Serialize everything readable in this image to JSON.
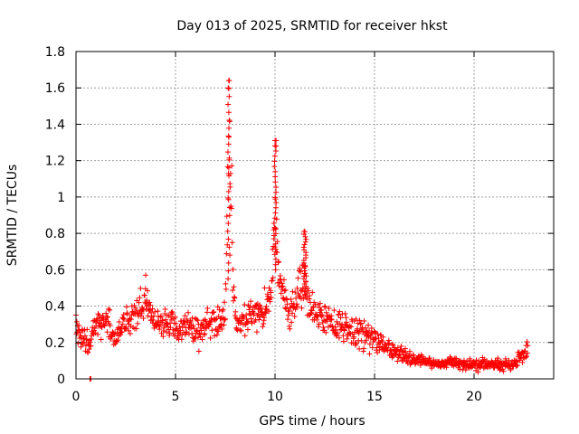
{
  "chart_data": {
    "type": "scatter",
    "title": "Day 013 of 2025, SRMTID for receiver hkst",
    "xlabel": "GPS time / hours",
    "ylabel": "SRMTID / TECUs",
    "xlim": [
      0,
      24
    ],
    "ylim": [
      0,
      1.8
    ],
    "xticks": [
      0,
      5,
      10,
      15,
      20
    ],
    "yticks": [
      0,
      0.2,
      0.4,
      0.6,
      0.8,
      1,
      1.2,
      1.4,
      1.6,
      1.8
    ],
    "xtick_labels": [
      "0",
      "5",
      "10",
      "15",
      "20"
    ],
    "ytick_labels": [
      "0",
      "0.2",
      "0.4",
      "0.6",
      "0.8",
      "1",
      "1.2",
      "1.4",
      "1.6",
      "1.8"
    ],
    "grid": true,
    "marker": "+",
    "series": [
      {
        "name": "SRMTID",
        "color": "#ff0000",
        "description": "approximate envelope of the dense point cloud (mean level and spread over time)",
        "profile": {
          "x": [
            0.0,
            0.3,
            0.6,
            1.0,
            1.5,
            2.0,
            2.5,
            3.0,
            3.5,
            4.0,
            4.5,
            5.0,
            5.5,
            6.0,
            6.5,
            7.0,
            7.3,
            7.5,
            7.6,
            7.7,
            7.8,
            7.9,
            8.1,
            8.5,
            9.0,
            9.5,
            9.8,
            10.0,
            10.2,
            10.4,
            10.7,
            11.0,
            11.3,
            11.5,
            11.7,
            12.0,
            12.5,
            13.0,
            13.5,
            14.0,
            14.5,
            15.0,
            15.5,
            16.0,
            16.5,
            17.0,
            17.5,
            18.0,
            18.5,
            19.0,
            19.5,
            20.0,
            20.5,
            21.0,
            21.5,
            22.0,
            22.3,
            22.7
          ],
          "mean": [
            0.3,
            0.22,
            0.2,
            0.3,
            0.32,
            0.22,
            0.3,
            0.35,
            0.42,
            0.3,
            0.3,
            0.28,
            0.27,
            0.26,
            0.3,
            0.32,
            0.3,
            0.4,
            0.9,
            1.3,
            1.0,
            0.45,
            0.28,
            0.33,
            0.36,
            0.38,
            0.45,
            0.9,
            0.55,
            0.5,
            0.35,
            0.42,
            0.5,
            0.6,
            0.4,
            0.36,
            0.33,
            0.3,
            0.28,
            0.25,
            0.24,
            0.22,
            0.17,
            0.15,
            0.13,
            0.1,
            0.1,
            0.08,
            0.08,
            0.09,
            0.08,
            0.08,
            0.08,
            0.08,
            0.08,
            0.08,
            0.12,
            0.16
          ],
          "spread": [
            0.1,
            0.08,
            0.08,
            0.1,
            0.1,
            0.08,
            0.1,
            0.1,
            0.12,
            0.1,
            0.1,
            0.1,
            0.1,
            0.1,
            0.1,
            0.1,
            0.1,
            0.15,
            0.35,
            0.35,
            0.35,
            0.15,
            0.1,
            0.1,
            0.1,
            0.12,
            0.12,
            0.4,
            0.1,
            0.1,
            0.1,
            0.12,
            0.15,
            0.2,
            0.12,
            0.1,
            0.1,
            0.1,
            0.1,
            0.1,
            0.1,
            0.1,
            0.08,
            0.07,
            0.06,
            0.04,
            0.04,
            0.03,
            0.03,
            0.04,
            0.04,
            0.04,
            0.04,
            0.04,
            0.04,
            0.04,
            0.05,
            0.06
          ]
        },
        "extremes": [
          {
            "x": 7.7,
            "y": 1.64
          },
          {
            "x": 7.65,
            "y": 1.6
          },
          {
            "x": 10.0,
            "y": 1.31
          },
          {
            "x": 10.05,
            "y": 1.28
          },
          {
            "x": 11.5,
            "y": 0.81
          },
          {
            "x": 3.5,
            "y": 0.57
          },
          {
            "x": 0.7,
            "y": 0.0
          },
          {
            "x": 0.75,
            "y": 0.0
          }
        ]
      }
    ]
  }
}
